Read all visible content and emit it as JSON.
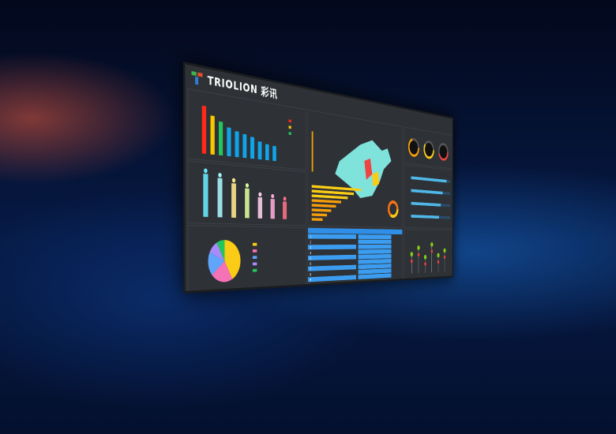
{
  "logo": {
    "brand": "TRIOLION",
    "brand_cn": "彩讯",
    "colors": [
      "#e84a2e",
      "#3fb34f",
      "#2f7ed8"
    ]
  },
  "theme": {
    "panel": "#2e3135",
    "accent": "#2f8fe8",
    "background": "#061a45"
  },
  "top_bar_chart": {
    "colors": [
      "#ff2a1a",
      "#f6c800",
      "#22c55e",
      "#0ea5e9",
      "#0ea5e9",
      "#0ea5e9",
      "#0ea5e9",
      "#0ea5e9",
      "#0ea5e9",
      "#0ea5e9"
    ],
    "values": [
      100,
      82,
      72,
      62,
      56,
      52,
      48,
      40,
      36,
      34
    ]
  },
  "gradient_bar_chart": {
    "colors": [
      "#67e8f9",
      "#a5f3fc",
      "#fde68a",
      "#d9f99d",
      "#fbcfe8",
      "#f9a8d4",
      "#fb7185"
    ],
    "values": [
      80,
      74,
      66,
      58,
      42,
      40,
      36
    ]
  },
  "pie_chart": {
    "colors": [
      "#facc15",
      "#f472b6",
      "#60a5fa",
      "#a78bfa",
      "#22c55e"
    ],
    "values": [
      42,
      22,
      18,
      10,
      8
    ]
  },
  "heat_bars": {
    "values": [
      95,
      80,
      68,
      55,
      45,
      36,
      28,
      20
    ]
  },
  "gauges": {
    "colors": [
      "#f59e0b",
      "#facc15",
      "#ef4444"
    ],
    "values": [
      0.7,
      0.6,
      0.45
    ]
  },
  "h_bars": {
    "values": [
      0.9,
      0.8,
      0.75,
      0.7
    ]
  },
  "table": {
    "rows": [
      "1",
      "2",
      "3",
      "4",
      "5",
      "6",
      "7",
      "8",
      "9"
    ]
  },
  "lollipops": {
    "values": [
      0.6,
      0.8,
      0.5,
      0.9,
      0.55,
      0.7
    ]
  }
}
